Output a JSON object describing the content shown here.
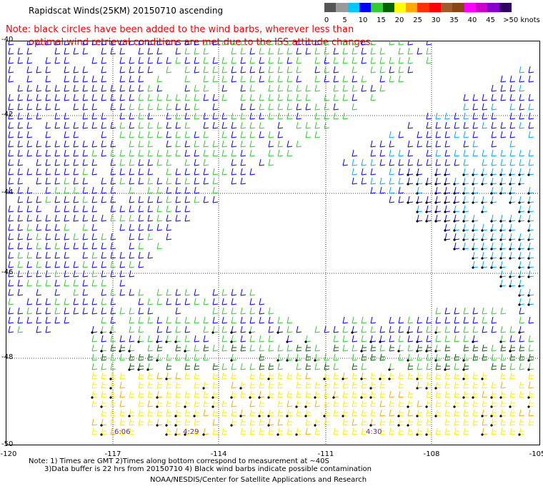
{
  "title": "Rapidscat Winds(25KM) 20150710 ascending",
  "note": {
    "line1": "Note: black circles have been added to the wind barbs, wherever less than",
    "line2": "optimal wind retrieval conditions are met due to the ISS attitude changes."
  },
  "color_scale": {
    "labels": [
      "0",
      "5",
      "10",
      "15",
      "20",
      "25",
      "30",
      "35",
      "40",
      "45",
      ">50 knots"
    ],
    "colors": [
      "#555555",
      "#999999",
      "#00c8ff",
      "#0000ff",
      "#33cc33",
      "#006400",
      "#ffff00",
      "#ffaa00",
      "#ff3300",
      "#ff0000",
      "#a05a2c",
      "#8b4513",
      "#ff00ff",
      "#cc00cc",
      "#8800cc",
      "#330066"
    ]
  },
  "axes": {
    "lat_labels": [
      "-40",
      "-42",
      "-44",
      "-46",
      "-48",
      "-50"
    ],
    "lon_labels": [
      "-120",
      "-117",
      "-114",
      "-111",
      "-108",
      "-105"
    ]
  },
  "pass_times": [
    "6:06",
    "4:29",
    "4:30"
  ],
  "footer": {
    "line1": "Note: 1) Times are GMT 2)Times along bottom correspond to measurement at ~40S",
    "line2": "3)Data buffer is 22 hrs from 20150710 4) Black wind barbs indicate possible contamination"
  },
  "credit": "NOAA/NESDIS/Center for Satellite Applications and Research"
}
